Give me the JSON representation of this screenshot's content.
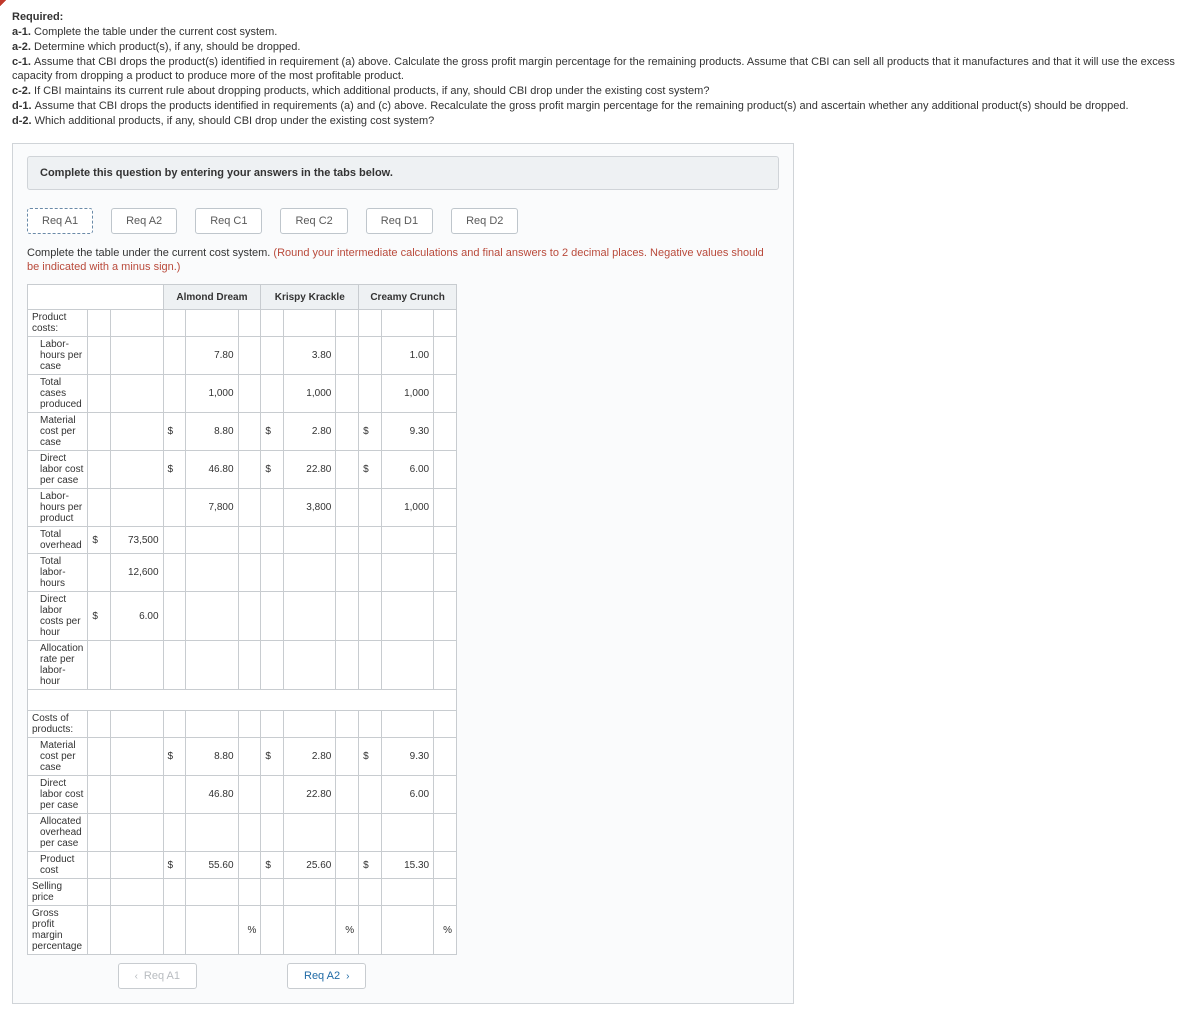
{
  "required": {
    "heading": "Required:",
    "lines": [
      {
        "tag": "a-1.",
        "text": "Complete the table under the current cost system."
      },
      {
        "tag": "a-2.",
        "text": "Determine which product(s), if any, should be dropped."
      },
      {
        "tag": "c-1.",
        "text": "Assume that CBI drops the product(s) identified in requirement (a) above. Calculate the gross profit margin percentage for the remaining products. Assume that CBI can sell all products that it manufactures and that it will use the excess capacity from dropping a product to produce more of the most profitable product."
      },
      {
        "tag": "c-2.",
        "text": "If CBI maintains its current rule about dropping products, which additional products, if any, should CBI drop under the existing cost system?"
      },
      {
        "tag": "d-1.",
        "text": "Assume that CBI drops the products identified in requirements (a) and (c) above. Recalculate the gross profit margin percentage for the remaining product(s) and ascertain whether any additional product(s) should be dropped."
      },
      {
        "tag": "d-2.",
        "text": "Which additional products, if any, should CBI drop under the existing cost system?"
      }
    ]
  },
  "panel": {
    "title": "Complete this question by entering your answers in the tabs below.",
    "tabs": [
      "Req A1",
      "Req A2",
      "Req C1",
      "Req C2",
      "Req D1",
      "Req D2"
    ],
    "active_tab": 0,
    "instr_main": "Complete the table under the current cost system.",
    "instr_hint": "(Round your intermediate calculations and final answers to 2 decimal places. Negative values should be indicated with a minus sign.)"
  },
  "sheet": {
    "headers": [
      "",
      "Almond Dream",
      "Krispy Krackle",
      "Creamy Crunch"
    ],
    "rows": [
      {
        "type": "section",
        "label": "Product costs:"
      },
      {
        "label": "Labor-hours per case",
        "indent": true,
        "c1_v": "7.80",
        "c2_v": "3.80",
        "c3_v": "1.00"
      },
      {
        "label": "Total cases produced",
        "indent": true,
        "c1_v": "1,000",
        "c2_v": "1,000",
        "c3_v": "1,000"
      },
      {
        "label": "Material cost per case",
        "indent": true,
        "c1_s": "$",
        "c1_v": "8.80",
        "c2_s": "$",
        "c2_v": "2.80",
        "c3_s": "$",
        "c3_v": "9.30"
      },
      {
        "label": "Direct labor cost per case",
        "indent": true,
        "c1_s": "$",
        "c1_v": "46.80",
        "c2_s": "$",
        "c2_v": "22.80",
        "c3_s": "$",
        "c3_v": "6.00"
      },
      {
        "label": "Labor-hours per product",
        "indent": true,
        "c1_v": "7,800",
        "c2_v": "3,800",
        "c3_v": "1,000"
      },
      {
        "label": "Total overhead",
        "indent": true,
        "c0_s": "$",
        "c0_v": "73,500"
      },
      {
        "label": "Total labor-hours",
        "indent": true,
        "c0_v": "12,600"
      },
      {
        "label": "Direct labor costs per hour",
        "indent": true,
        "c0_s": "$",
        "c0_v": "6.00"
      },
      {
        "label": "Allocation rate per labor-hour",
        "indent": true,
        "err_c0": true
      },
      {
        "type": "blank"
      },
      {
        "type": "section",
        "label": "Costs of products:"
      },
      {
        "label": "Material cost per case",
        "indent": true,
        "c1_s": "$",
        "c1_v": "8.80",
        "c2_s": "$",
        "c2_v": "2.80",
        "c3_s": "$",
        "c3_v": "9.30"
      },
      {
        "label": "Direct labor cost per case",
        "indent": true,
        "c1_v": "46.80",
        "c2_v": "22.80",
        "c3_v": "6.00"
      },
      {
        "label": "Allocated overhead per case",
        "indent": true,
        "err_c1": true,
        "err_c2": true,
        "err_c3": true
      },
      {
        "label": "Product cost",
        "indent": true,
        "c1_s": "$",
        "c1_v": "55.60",
        "c2_s": "$",
        "c2_v": "25.60",
        "c3_s": "$",
        "c3_v": "15.30"
      },
      {
        "label": "Selling price"
      },
      {
        "label": "Gross profit margin percentage",
        "pct": true,
        "err_c1": true,
        "err_c2": true,
        "err_c3": true
      }
    ]
  },
  "nav": {
    "prev": "Req A1",
    "next": "Req A2"
  },
  "colors": {
    "hint": "#b94a3b",
    "link": "#1f6aa5",
    "muted": "#b8bcc0"
  }
}
